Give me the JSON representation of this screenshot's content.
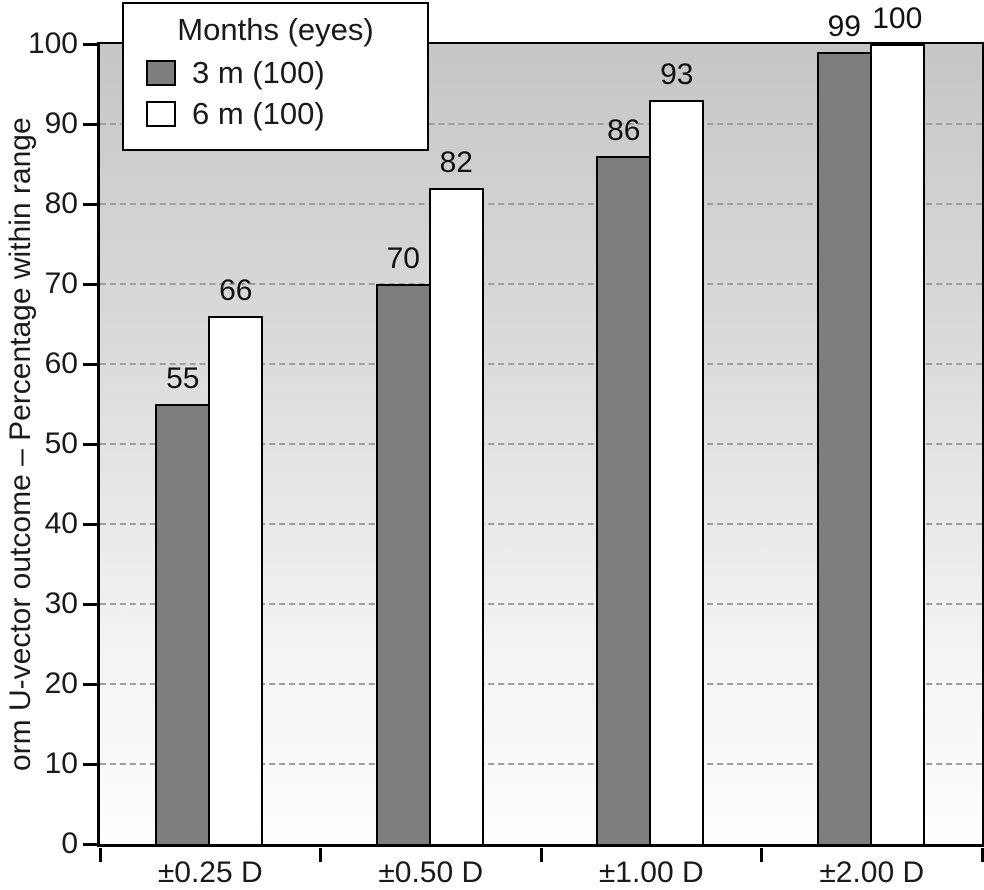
{
  "chart_data": {
    "type": "bar",
    "title": "",
    "categories": [
      "±0.25 D",
      "±0.50 D",
      "±1.00 D",
      "±2.00 D"
    ],
    "series": [
      {
        "name": "3 m (100)",
        "color": "#7e7e7e",
        "values": [
          55,
          70,
          86,
          99
        ]
      },
      {
        "name": "6 m (100)",
        "color": "#ffffff",
        "values": [
          66,
          82,
          93,
          100
        ]
      }
    ],
    "xlabel": "",
    "ylabel": "orm U-vector outcome – Percentage within range",
    "ylim": [
      0,
      100
    ],
    "ytick_step": 10,
    "yticks": [
      0,
      10,
      20,
      30,
      40,
      50,
      60,
      70,
      80,
      90,
      100
    ],
    "bar_value_labels": [
      55,
      66,
      70,
      82,
      86,
      93,
      99,
      100
    ],
    "legend_title": "Months (eyes)",
    "legend_position": "top-left",
    "grid": "dashed-horizontal",
    "bar_border_color": "#000000",
    "plot_background": "gray-to-white-vertical-gradient"
  }
}
